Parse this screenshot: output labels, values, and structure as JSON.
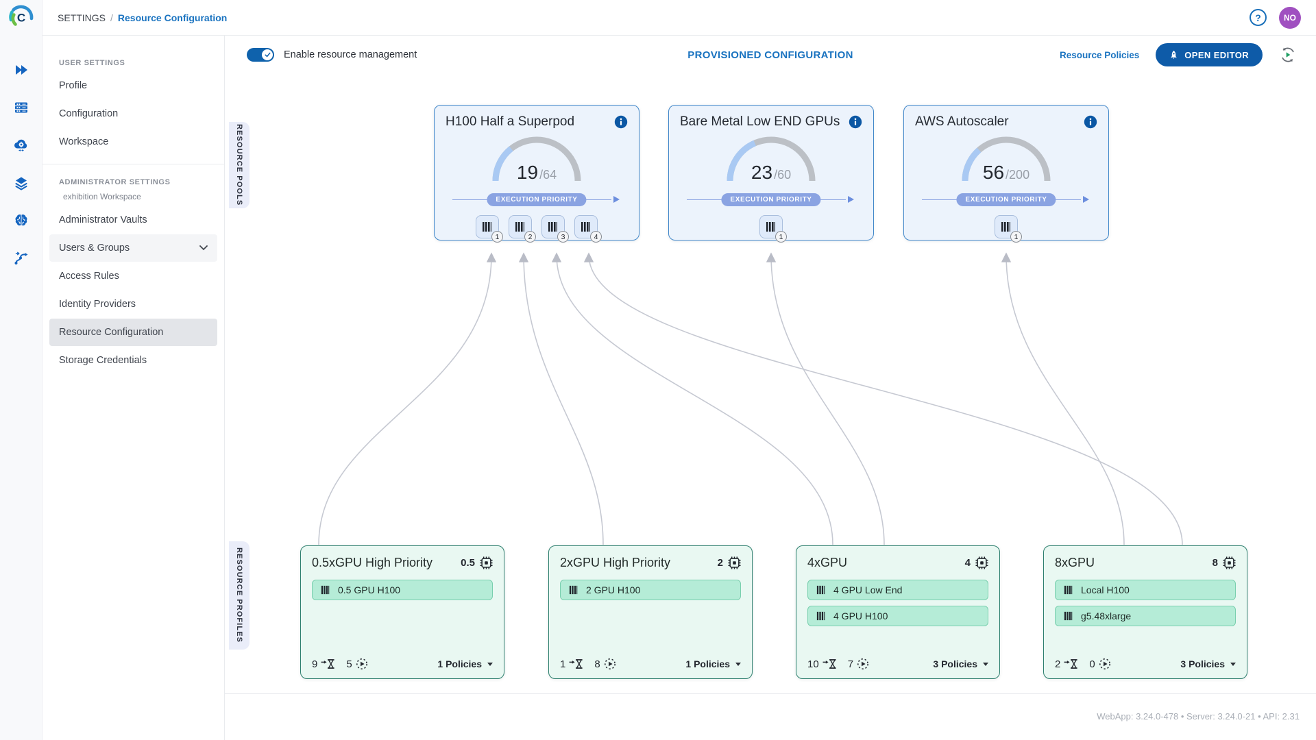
{
  "header": {
    "breadcrumb_root": "SETTINGS",
    "breadcrumb_sep": "/",
    "breadcrumb_current": "Resource Configuration",
    "help_glyph": "?",
    "avatar_initials": "NO"
  },
  "rail_icons": [
    "launch-icon",
    "servers-icon",
    "cloud-gear-icon",
    "layers-icon",
    "brain-icon",
    "pipeline-icon"
  ],
  "sidebar": {
    "user_settings_label": "USER SETTINGS",
    "user_items": [
      "Profile",
      "Configuration",
      "Workspace"
    ],
    "admin_settings_label": "ADMINISTRATOR SETTINGS",
    "workspace_name": "exhibition Workspace",
    "admin_items": [
      "Administrator Vaults",
      "Users & Groups",
      "Access Rules",
      "Identity Providers",
      "Resource Configuration",
      "Storage Credentials"
    ],
    "selected_item": "Resource Configuration"
  },
  "toolbar": {
    "toggle_label": "Enable resource management",
    "toggle_on": true,
    "title": "PROVISIONED CONFIGURATION",
    "policies_link": "Resource Policies",
    "open_editor_label": "OPEN EDITOR"
  },
  "sections": {
    "pools_label": "RESOURCE POOLS",
    "profiles_label": "RESOURCE PROFILES"
  },
  "pools": [
    {
      "name": "H100 Half a Superpod",
      "used": 19,
      "total": 64,
      "total_label": "/64",
      "priority_label": "EXECUTION PRIORITY",
      "workers": [
        1,
        2,
        3,
        4
      ]
    },
    {
      "name": "Bare Metal Low END GPUs",
      "used": 23,
      "total": 60,
      "total_label": "/60",
      "priority_label": "EXECUTION PRIORITY",
      "workers": [
        1
      ]
    },
    {
      "name": "AWS Autoscaler",
      "used": 56,
      "total": 200,
      "total_label": "/200",
      "priority_label": "EXECUTION PRIORITY",
      "workers": [
        1
      ]
    }
  ],
  "profiles": [
    {
      "name": "0.5xGPU High Priority",
      "gpus": "0.5",
      "tags": [
        "0.5 GPU H100"
      ],
      "pending": 9,
      "running": 5,
      "policies": "1 Policies"
    },
    {
      "name": "2xGPU High Priority",
      "gpus": "2",
      "tags": [
        "2 GPU H100"
      ],
      "pending": 1,
      "running": 8,
      "policies": "1 Policies"
    },
    {
      "name": "4xGPU",
      "gpus": "4",
      "tags": [
        "4 GPU Low End",
        "4 GPU H100"
      ],
      "pending": 10,
      "running": 7,
      "policies": "3 Policies"
    },
    {
      "name": "8xGPU",
      "gpus": "8",
      "tags": [
        "Local H100",
        "g5.48xlarge"
      ],
      "pending": 2,
      "running": 0,
      "policies": "3 Policies"
    }
  ],
  "footer": {
    "version_text": "WebApp: 3.24.0-478 • Server: 3.24.0-21 • API: 2.31"
  },
  "colors": {
    "primary_blue": "#1a73c0",
    "button_blue": "#0e5ba8",
    "pool_border": "#4288ca",
    "pool_bg": "#ecf3fc",
    "gauge_fill": "#a9c9f3",
    "gauge_track": "#bcc0c6",
    "priority_pill": "#8aa3e2",
    "profile_border": "#2d7f6e",
    "profile_bg": "#e9f8f2",
    "tag_bg": "#b5ecd7",
    "tag_border": "#79cfae",
    "avatar_purple": "#a050c0",
    "refresh_play_green": "#1d9e62",
    "connector_gray": "#c6c9d2"
  }
}
